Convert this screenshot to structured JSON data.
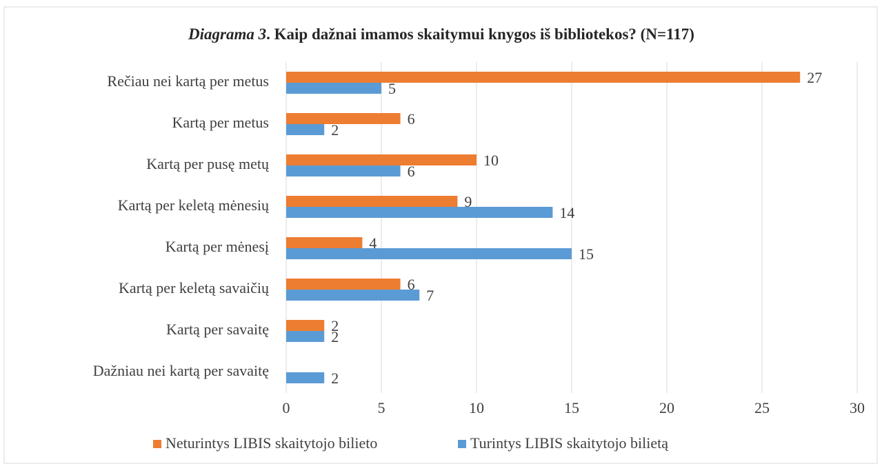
{
  "chart_data": {
    "type": "barh",
    "title": [
      "Diagrama 3",
      ". Kaip dažnai imamos skaitymui knygos iš bibliotekos? (N=117)"
    ],
    "categories": [
      "Rečiau nei kartą per metus",
      "Kartą per metus",
      "Kartą per pusę metų",
      "Kartą per keletą mėnesių",
      "Kartą per mėnesį",
      "Kartą per keletą savaičių",
      "Kartą per savaitę",
      "Dažniau nei kartą per savaitę"
    ],
    "series": [
      {
        "name": "Neturintys LIBIS skaitytojo bilieto",
        "color": "#ed7d31",
        "values": [
          27,
          6,
          10,
          9,
          4,
          6,
          2,
          null
        ]
      },
      {
        "name": "Turintys LIBIS skaitytojo bilietą",
        "color": "#5b9bd5",
        "values": [
          5,
          2,
          6,
          14,
          15,
          7,
          2,
          2
        ]
      }
    ],
    "xlim": [
      0,
      30
    ],
    "xticks": [
      0,
      5,
      10,
      15,
      20,
      25,
      30
    ],
    "grid": true,
    "legend": "bottom"
  }
}
